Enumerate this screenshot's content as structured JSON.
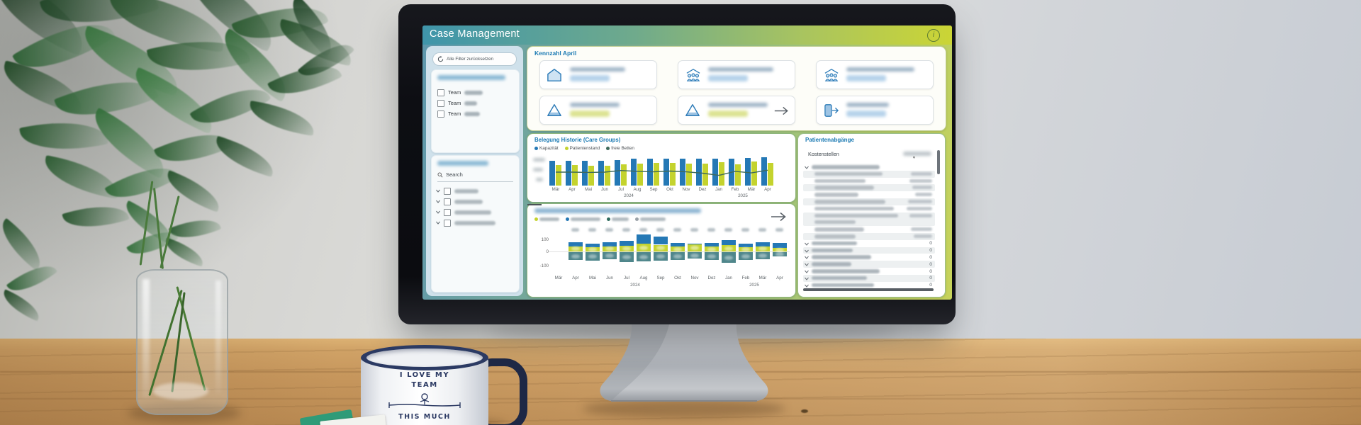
{
  "scene": {
    "mug_text": {
      "line1": "I LOVE MY",
      "line2": "TEAM",
      "line3": "THIS MUCH"
    }
  },
  "app": {
    "title": "Case Management",
    "info_icon": "i",
    "sidebar": {
      "reset_label": "Alle Filter zurücksetzen",
      "team_prefix": "Team",
      "team_rows": 3,
      "search_label": "Search",
      "tree_rows": 4,
      "headings_blurred": true
    },
    "kennzahl": {
      "heading": "Kennzahl April",
      "cards": [
        {
          "icon": "house-icon",
          "tint": "blue"
        },
        {
          "icon": "people-group-icon",
          "tint": "blue"
        },
        {
          "icon": "people-group-icon",
          "tint": "blue"
        },
        {
          "icon": "triangle-icon",
          "tint": "green"
        },
        {
          "icon": "triangle-icon",
          "tint": "green",
          "arrow": true
        },
        {
          "icon": "door-arrow-icon",
          "tint": "blue"
        }
      ]
    },
    "table": {
      "title": "Patientenabgänge",
      "col1": "Kostenstellen",
      "col2_blurred": true,
      "sort_caret": "▾",
      "rows": [
        {
          "type": "group"
        },
        {
          "type": "detail"
        },
        {
          "type": "detail"
        },
        {
          "type": "detail"
        },
        {
          "type": "detail"
        },
        {
          "type": "detail"
        },
        {
          "type": "detail"
        },
        {
          "type": "detail",
          "lines": 2
        },
        {
          "type": "detail"
        },
        {
          "type": "detail"
        },
        {
          "type": "group",
          "value": "0"
        },
        {
          "type": "group",
          "value": "0"
        },
        {
          "type": "group",
          "value": "0"
        },
        {
          "type": "group",
          "value": "0"
        },
        {
          "type": "group",
          "value": "0"
        },
        {
          "type": "group",
          "value": "0"
        },
        {
          "type": "group",
          "value": "0"
        }
      ]
    }
  },
  "chart_data": [
    {
      "type": "bar",
      "title": "Belegung Historie (Care Groups)",
      "categories": [
        "Mär",
        "Apr",
        "Mai",
        "Jun",
        "Jul",
        "Aug",
        "Sep",
        "Okt",
        "Nov",
        "Dez",
        "Jan",
        "Feb",
        "Mär",
        "Apr"
      ],
      "year_labels": [
        "2024",
        "2025"
      ],
      "year_split_index": 10,
      "y_ticks_blurred": true,
      "series": [
        {
          "name": "Kapazität",
          "type": "bar",
          "color": "#2478b5",
          "values": [
            92,
            92,
            92,
            92,
            96,
            100,
            101,
            101,
            101,
            101,
            100,
            101,
            104,
            106
          ]
        },
        {
          "name": "Patientenstand",
          "type": "bar",
          "color": "#c4d32e",
          "values": [
            76,
            76,
            75,
            73,
            79,
            82,
            84,
            84,
            82,
            82,
            86,
            79,
            89,
            85
          ]
        },
        {
          "name": "freie Betten",
          "type": "line",
          "color": "#3e6a5a",
          "values": [
            50,
            50,
            49,
            50,
            56,
            53,
            51,
            54,
            51,
            46,
            38,
            53,
            47,
            57
          ]
        }
      ]
    },
    {
      "type": "bar",
      "title_blurred": true,
      "categories": [
        "Mär",
        "Apr",
        "Mai",
        "Jun",
        "Jul",
        "Aug",
        "Sep",
        "Okt",
        "Nov",
        "Dez",
        "Jan",
        "Feb",
        "Mär",
        "Apr"
      ],
      "year_labels": [
        "2024",
        "2025"
      ],
      "y_ticks": [
        "100",
        "0",
        "-100"
      ],
      "ylim": [
        -100,
        140
      ],
      "legend_blurred_colors": [
        "#c4d32e",
        "#2478b5",
        "#2e6b5e",
        "#9aa2a8"
      ],
      "series": [
        {
          "name_blurred": true,
          "color": "#c4d32e",
          "values": [
            null,
            42,
            36,
            42,
            48,
            63,
            56,
            39,
            58,
            39,
            52,
            36,
            42,
            28
          ]
        },
        {
          "name_blurred": true,
          "color": "#2478b5",
          "values": [
            null,
            34,
            29,
            34,
            40,
            78,
            68,
            32,
            7,
            32,
            42,
            29,
            34,
            43
          ]
        },
        {
          "name_blurred": true,
          "color": "#4f868b",
          "values": [
            null,
            -52,
            -57,
            -48,
            -67,
            -62,
            -57,
            -52,
            -43,
            -52,
            -71,
            -52,
            -48,
            -29
          ]
        }
      ]
    }
  ],
  "colors": {
    "titlebar_left": "#3f95aa",
    "titlebar_right": "#cbd535",
    "accent_blue": "#1b7ab3",
    "bar_blue": "#2478b5",
    "bar_green": "#c4d32e",
    "bar_teal": "#4f868b",
    "line_green": "#3e6a5a",
    "sidebar_bg": "#cfe1eb"
  }
}
